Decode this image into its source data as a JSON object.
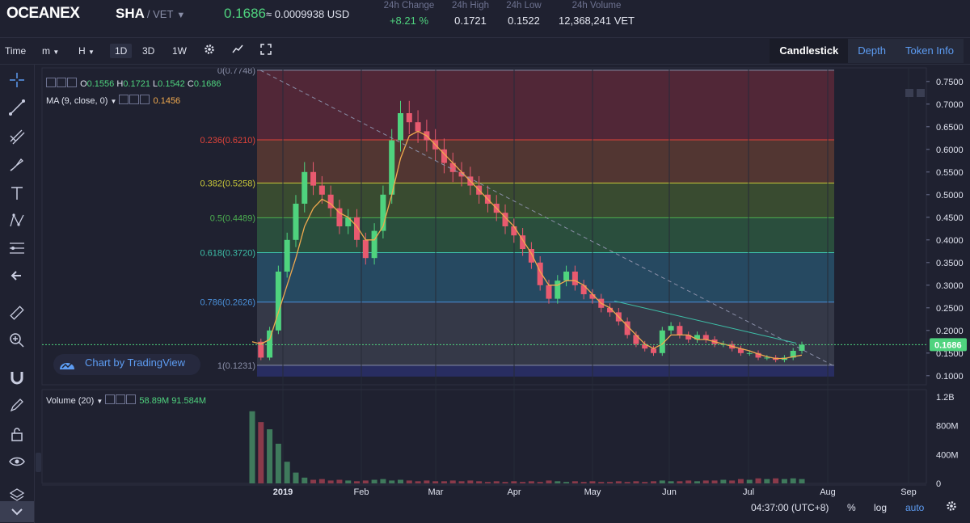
{
  "header": {
    "logo_text": "OCEANEX",
    "pair_base": "SHA",
    "pair_quote": "/ VET",
    "price": "0.1686",
    "price_usd": "≈ 0.0009938 USD",
    "stats": [
      {
        "label": "24h Change",
        "value": "+8.21 %"
      },
      {
        "label": "24h High",
        "value": "0.1721"
      },
      {
        "label": "24h Low",
        "value": "0.1522"
      },
      {
        "label": "24h Volume",
        "value": "12,368,241 VET"
      }
    ],
    "accent_green": "#4fd37e"
  },
  "toolbar": {
    "items": [
      "Time",
      "m",
      "H",
      "1D",
      "3D",
      "1W"
    ],
    "active_interval": "1D",
    "tabs": [
      "Candlestick",
      "Depth",
      "Token Info"
    ],
    "active_tab": "Candlestick"
  },
  "legend": {
    "o_label": "O",
    "o_value": "0.1556",
    "h_label": "H",
    "h_value": "0.1721",
    "l_label": "L",
    "l_value": "0.1542",
    "c_label": "C",
    "c_value": "0.1686",
    "ma_label": "MA (9, close, 0)",
    "ma_value": "0.1456",
    "volume_label": "Volume (20)",
    "volume_v1": "58.89M",
    "volume_v2": "91.584M"
  },
  "watermark": "Chart by TradingView",
  "footer": {
    "time": "04:37:00 (UTC+8)",
    "percent": "%",
    "log": "log",
    "auto": "auto"
  },
  "chart_data": {
    "type": "candlestick",
    "x_labels": [
      "2019",
      "Feb",
      "Mar",
      "Apr",
      "May",
      "Jun",
      "Jul",
      "Aug",
      "Sep"
    ],
    "y_ticks": [
      "0.7500",
      "0.7000",
      "0.6500",
      "0.6000",
      "0.5500",
      "0.5000",
      "0.4500",
      "0.4000",
      "0.3500",
      "0.3000",
      "0.2500",
      "0.2000",
      "0.1500",
      "0.1000"
    ],
    "y_range": [
      0.08,
      0.78
    ],
    "last_price_label": "0.1686",
    "last_price": 0.1686,
    "fib_levels": [
      {
        "label": "0(0.7748)",
        "value": 0.7748,
        "color": "#8a8fa8",
        "fill": "#5a2838"
      },
      {
        "label": "0.236(0.6210)",
        "value": 0.621,
        "color": "#e0433a",
        "fill": "#5c3a33"
      },
      {
        "label": "0.382(0.5258)",
        "value": 0.5258,
        "color": "#c9c839",
        "fill": "#3e5230"
      },
      {
        "label": "0.5(0.4489)",
        "value": 0.4489,
        "color": "#4caf50",
        "fill": "#2d5640"
      },
      {
        "label": "0.618(0.3720)",
        "value": 0.372,
        "color": "#3dbfa8",
        "fill": "#28506a"
      },
      {
        "label": "0.786(0.2626)",
        "value": 0.2626,
        "color": "#4a90d9",
        "fill": "#3a3d4c"
      },
      {
        "label": "1(0.1231)",
        "value": 0.1231,
        "color": "#8a8fa8",
        "fill": "#2a2f6a"
      }
    ],
    "price_series": [
      0.175,
      0.14,
      0.2,
      0.33,
      0.4,
      0.48,
      0.55,
      0.52,
      0.5,
      0.47,
      0.43,
      0.45,
      0.4,
      0.36,
      0.42,
      0.5,
      0.62,
      0.68,
      0.66,
      0.64,
      0.62,
      0.6,
      0.57,
      0.55,
      0.54,
      0.52,
      0.5,
      0.48,
      0.46,
      0.43,
      0.41,
      0.38,
      0.35,
      0.3,
      0.27,
      0.31,
      0.33,
      0.3,
      0.28,
      0.27,
      0.25,
      0.24,
      0.22,
      0.19,
      0.17,
      0.16,
      0.15,
      0.2,
      0.21,
      0.19,
      0.18,
      0.19,
      0.18,
      0.17,
      0.17,
      0.16,
      0.15,
      0.15,
      0.14,
      0.14,
      0.135,
      0.14,
      0.155,
      0.1686
    ],
    "ma_series": [
      0.175,
      0.17,
      0.18,
      0.24,
      0.3,
      0.36,
      0.43,
      0.47,
      0.49,
      0.48,
      0.46,
      0.45,
      0.43,
      0.4,
      0.4,
      0.43,
      0.5,
      0.58,
      0.63,
      0.64,
      0.63,
      0.61,
      0.59,
      0.57,
      0.55,
      0.53,
      0.51,
      0.49,
      0.47,
      0.45,
      0.43,
      0.4,
      0.37,
      0.33,
      0.3,
      0.3,
      0.31,
      0.31,
      0.3,
      0.28,
      0.26,
      0.25,
      0.23,
      0.21,
      0.19,
      0.17,
      0.16,
      0.17,
      0.19,
      0.19,
      0.19,
      0.18,
      0.18,
      0.175,
      0.17,
      0.165,
      0.16,
      0.155,
      0.148,
      0.142,
      0.138,
      0.138,
      0.142,
      0.1456
    ],
    "volume_ticks": [
      "1.2B",
      "800M",
      "400M",
      "0"
    ],
    "volume_series": [
      1.0,
      0.85,
      0.75,
      0.55,
      0.3,
      0.15,
      0.08,
      0.05,
      0.06,
      0.04,
      0.05,
      0.04,
      0.03,
      0.04,
      0.05,
      0.06,
      0.04,
      0.05,
      0.04,
      0.03,
      0.04,
      0.03,
      0.03,
      0.04,
      0.03,
      0.04,
      0.03,
      0.02,
      0.03,
      0.02,
      0.03,
      0.02,
      0.03,
      0.02,
      0.04,
      0.03,
      0.02,
      0.03,
      0.02,
      0.03,
      0.02,
      0.02,
      0.03,
      0.02,
      0.03,
      0.02,
      0.03,
      0.04,
      0.03,
      0.03,
      0.04,
      0.03,
      0.04,
      0.04,
      0.05,
      0.04,
      0.06,
      0.05,
      0.07,
      0.06,
      0.07,
      0.06,
      0.07,
      0.06
    ]
  }
}
